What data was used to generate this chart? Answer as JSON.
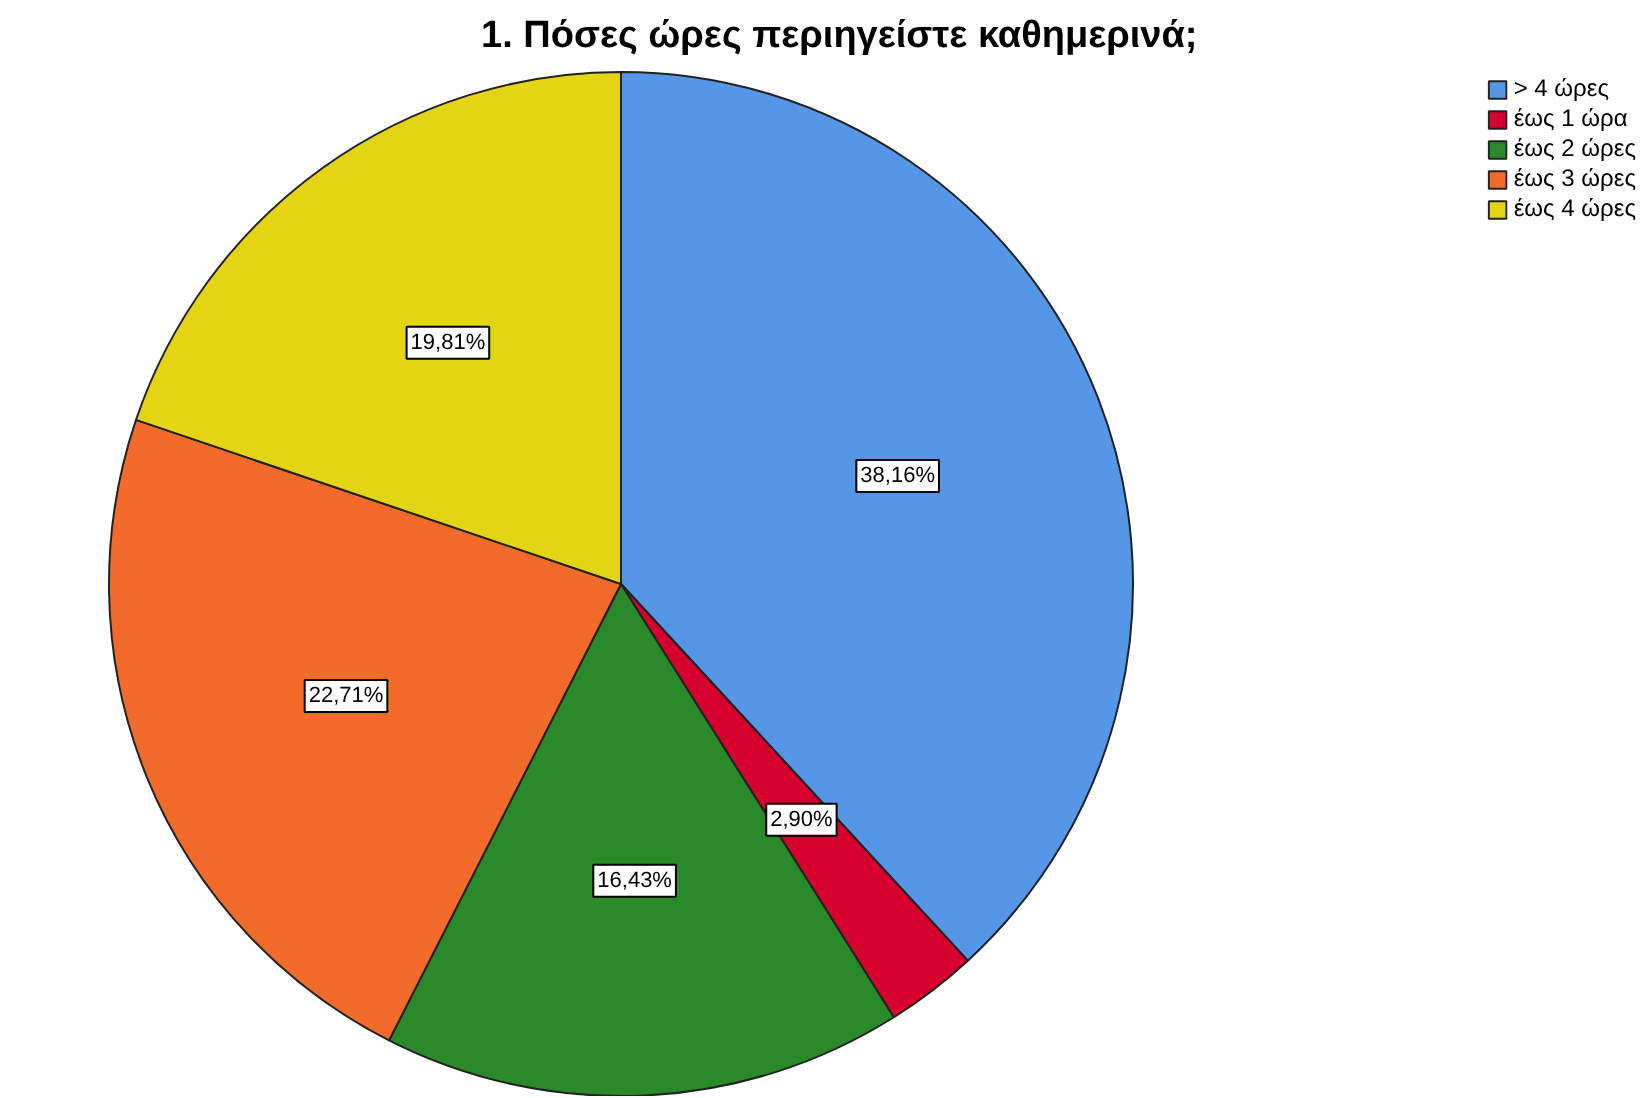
{
  "chart_data": {
    "type": "pie",
    "title": "1. Πόσες ώρες περιηγείστε καθημερινά;",
    "categories": [
      "> 4 ώρες",
      "έως 1 ώρα",
      "έως 2 ώρες",
      "έως 3 ώρες",
      "έως 4 ώρες"
    ],
    "values": [
      38.16,
      2.9,
      16.43,
      22.71,
      19.81
    ],
    "colors": [
      "#5596e6",
      "#d6002f",
      "#2a8a2a",
      "#f26b2a",
      "#e3d514"
    ],
    "value_labels": [
      "38,16%",
      "2,90%",
      "16,43%",
      "22,71%",
      "19,81%"
    ],
    "legend": "top right"
  }
}
